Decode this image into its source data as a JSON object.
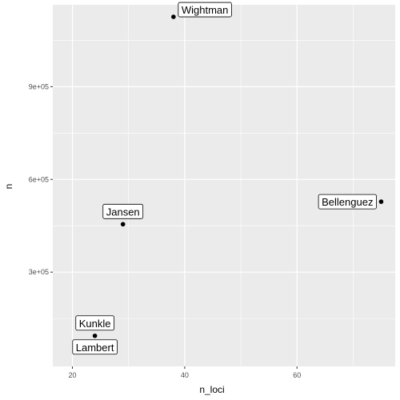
{
  "chart_data": {
    "type": "scatter",
    "title": "",
    "xlabel": "n_loci",
    "ylabel": "n",
    "xlim": [
      16.5,
      77.5
    ],
    "ylim": [
      -5000,
      1165000
    ],
    "x_ticks": [
      20,
      40,
      60
    ],
    "x_tick_labels": [
      "20",
      "40",
      "60"
    ],
    "y_ticks": [
      300000,
      600000,
      900000
    ],
    "y_tick_labels": [
      "3e+05",
      "6e+05",
      "9e+05"
    ],
    "grid": true,
    "points": [
      {
        "label": "Wightman",
        "x": 38,
        "y": 1126000
      },
      {
        "label": "Bellenguez",
        "x": 75,
        "y": 528000
      },
      {
        "label": "Jansen",
        "x": 29,
        "y": 455000
      },
      {
        "label": "Kunkle",
        "x": 24,
        "y": 94000
      },
      {
        "label": "Lambert",
        "x": 24,
        "y": 94000
      }
    ],
    "colors": {
      "panel": "#ebebeb",
      "grid": "#ffffff",
      "point": "#000000",
      "label_fill": "#ffffff",
      "label_border": "#000000"
    }
  }
}
